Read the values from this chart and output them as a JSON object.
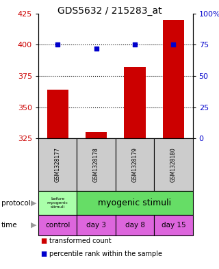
{
  "title": "GDS5632 / 215283_at",
  "samples": [
    "GSM1328177",
    "GSM1328178",
    "GSM1328179",
    "GSM1328180"
  ],
  "bar_values": [
    364,
    330,
    382,
    420
  ],
  "bar_bottom": 325,
  "dot_values": [
    75,
    72,
    75,
    75
  ],
  "bar_color": "#cc0000",
  "dot_color": "#0000cc",
  "ylim_left": [
    325,
    425
  ],
  "ylim_right": [
    0,
    100
  ],
  "yticks_left": [
    325,
    350,
    375,
    400,
    425
  ],
  "yticks_right": [
    0,
    25,
    50,
    75,
    100
  ],
  "ytick_labels_right": [
    "0",
    "25",
    "50",
    "75",
    "100%"
  ],
  "protocol_label0": "before\nmyogenic\nstimuli",
  "protocol_label1": "myogenic stimuli",
  "protocol_color0": "#aaffaa",
  "protocol_color1": "#66dd66",
  "time_labels": [
    "control",
    "day 3",
    "day 8",
    "day 15"
  ],
  "time_color": "#dd66dd",
  "time_color_control": "#ddaadd",
  "legend_red": "transformed count",
  "legend_blue": "percentile rank within the sample",
  "bg_color": "#ffffff",
  "label_color_left": "#cc0000",
  "label_color_right": "#0000cc"
}
